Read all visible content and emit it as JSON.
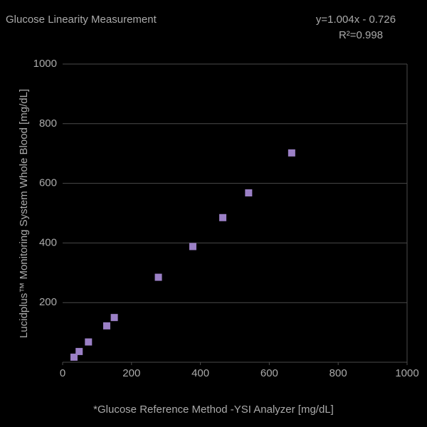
{
  "chart_data": {
    "type": "scatter",
    "title": "Glucose Linearity Measurement",
    "annotations": [
      "y=1.004x - 0.726",
      "R²=0.998"
    ],
    "x_label": "*Glucose Reference Method -YSI Analyzer [mg/dL]",
    "y_label": "Lucidplus™ Monitoring System Whole Blood [mg/dL]",
    "series": [
      {
        "name": null,
        "color": "#9b80c6",
        "x": [
          33,
          48,
          75,
          128,
          150,
          278,
          378,
          465,
          540,
          665
        ],
        "values": [
          17,
          36,
          68,
          122,
          150,
          285,
          388,
          485,
          568,
          702
        ]
      }
    ],
    "xlim": [
      0,
      1000
    ],
    "xticks": [
      0,
      200,
      400,
      600,
      800,
      1000
    ],
    "ylim": [
      0,
      1000
    ],
    "yticks": [
      200,
      400,
      600,
      800,
      1000
    ],
    "grid": true
  }
}
